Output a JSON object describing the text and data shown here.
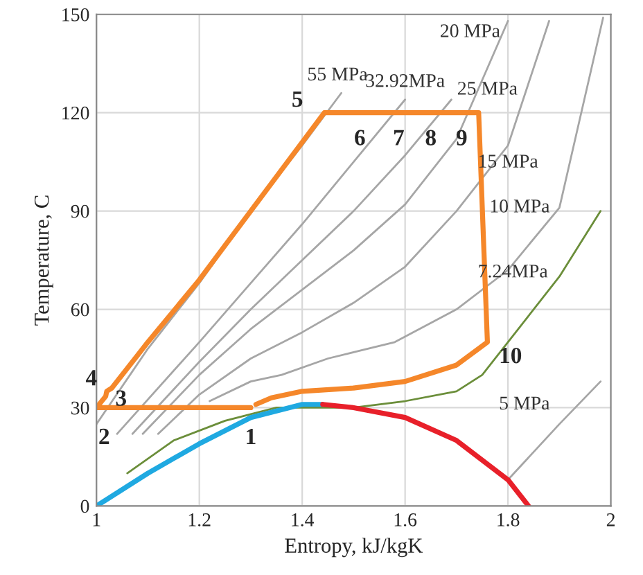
{
  "chart_data": {
    "type": "line",
    "xlabel": "Entropy, kJ/kgK",
    "ylabel": "Temperature, C",
    "xlim": [
      1,
      2
    ],
    "ylim": [
      0,
      150
    ],
    "xticks": [
      1,
      1.2,
      1.4,
      1.6,
      1.8,
      2
    ],
    "yticks": [
      0,
      30,
      60,
      90,
      120,
      150
    ],
    "grid": true,
    "legend": false,
    "marker": "none",
    "line_style": "solid",
    "series": [
      {
        "name": "55 MPa",
        "color": "#a6a6a6",
        "x": [
          1.0,
          1.1,
          1.2,
          1.3,
          1.4,
          1.476
        ],
        "values": [
          25,
          48,
          68,
          90,
          110,
          126
        ]
      },
      {
        "name": "32.92MPa",
        "color": "#a6a6a6",
        "x": [
          1.04,
          1.2,
          1.3,
          1.4,
          1.5,
          1.6
        ],
        "values": [
          22,
          50,
          68,
          86,
          105,
          124
        ]
      },
      {
        "name": "25 MPa",
        "color": "#a6a6a6",
        "x": [
          1.07,
          1.2,
          1.3,
          1.4,
          1.5,
          1.6,
          1.69
        ],
        "values": [
          22,
          44,
          60,
          75,
          90,
          107,
          124
        ]
      },
      {
        "name": "20 MPa",
        "color": "#a6a6a6",
        "x": [
          1.09,
          1.2,
          1.3,
          1.4,
          1.5,
          1.6,
          1.7,
          1.8
        ],
        "values": [
          22,
          40,
          54,
          66,
          78,
          92,
          112,
          148
        ]
      },
      {
        "name": "15 MPa",
        "color": "#a6a6a6",
        "x": [
          1.12,
          1.2,
          1.3,
          1.4,
          1.5,
          1.6,
          1.7,
          1.8,
          1.88
        ],
        "values": [
          22,
          34,
          45,
          53,
          62,
          73,
          90,
          110,
          148
        ]
      },
      {
        "name": "10 MPa",
        "color": "#a6a6a6",
        "x": [
          1.22,
          1.3,
          1.36,
          1.45,
          1.58,
          1.7,
          1.8,
          1.9,
          1.985
        ],
        "values": [
          32,
          38,
          40,
          45,
          50,
          60,
          72,
          91,
          149
        ]
      },
      {
        "name": "5 MPa",
        "color": "#a6a6a6",
        "x": [
          1.8,
          1.9,
          1.98
        ],
        "values": [
          8,
          25,
          38
        ]
      },
      {
        "name": "7.24MPa",
        "color": "#6b8e3a",
        "x": [
          1.06,
          1.15,
          1.25,
          1.35,
          1.5,
          1.6,
          1.7,
          1.75,
          1.8,
          1.9,
          1.98
        ],
        "values": [
          10,
          20,
          26,
          30,
          30,
          32,
          35,
          40,
          50,
          70,
          90
        ]
      },
      {
        "color": "#1fa9e1",
        "x": [
          1.0,
          1.1,
          1.2,
          1.3,
          1.4,
          1.44
        ],
        "values": [
          0,
          10,
          19,
          27,
          31,
          31
        ]
      },
      {
        "color": "#e8202a",
        "x": [
          1.44,
          1.5,
          1.6,
          1.7,
          1.8,
          1.84
        ],
        "values": [
          31,
          30,
          27,
          20,
          8,
          0
        ]
      },
      {
        "color": "#f5872a",
        "x": [
          1.3,
          1.0,
          1.018,
          1.02,
          1.03,
          1.1,
          1.2,
          1.3,
          1.443,
          1.527,
          1.595,
          1.65,
          1.71,
          1.743,
          1.76,
          1.7,
          1.6,
          1.5,
          1.4,
          1.34,
          1.31
        ],
        "values": [
          30,
          30,
          33.5,
          35,
          36,
          50,
          69,
          90,
          120,
          120,
          120,
          120,
          120,
          120,
          50,
          43,
          38,
          36,
          35,
          33,
          31
        ]
      }
    ],
    "annotations": [
      {
        "text": "1",
        "x": 1.3,
        "y": 30
      },
      {
        "text": "2",
        "x": 1.0,
        "y": 30
      },
      {
        "text": "3",
        "x": 1.018,
        "y": 33.5
      },
      {
        "text": "4",
        "x": 1.02,
        "y": 35
      },
      {
        "text": "5",
        "x": 1.443,
        "y": 120
      },
      {
        "text": "6",
        "x": 1.527,
        "y": 120
      },
      {
        "text": "7",
        "x": 1.595,
        "y": 120
      },
      {
        "text": "8",
        "x": 1.65,
        "y": 120
      },
      {
        "text": "9",
        "x": 1.71,
        "y": 120
      },
      {
        "text": "10",
        "x": 1.76,
        "y": 50
      }
    ]
  }
}
